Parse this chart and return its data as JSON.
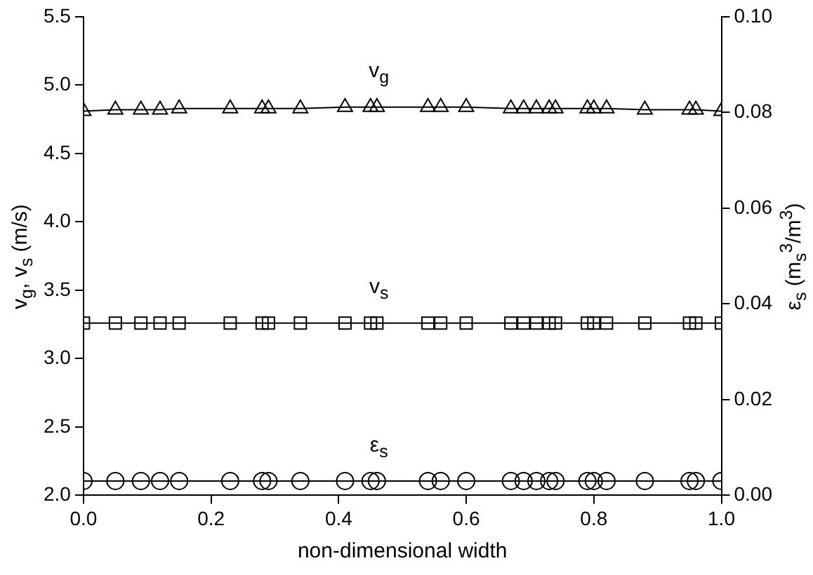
{
  "chart_data": {
    "type": "line",
    "xlabel": "non-dimensional width",
    "ylabel": "v$_{g}$, v$_{s}$ (m/s)",
    "y2label": "ε$_{s}$ (m$_{s}$$^{3}$/m$^{3}$)",
    "xlim": [
      0,
      1
    ],
    "xticks": [
      {
        "value": 0,
        "label": "0.0"
      },
      {
        "value": 0.2,
        "label": "0.2"
      },
      {
        "value": 0.4,
        "label": "0.4"
      },
      {
        "value": 0.6,
        "label": "0.6"
      },
      {
        "value": 0.8,
        "label": "0.8"
      },
      {
        "value": 1,
        "label": "1.0"
      }
    ],
    "ylim": [
      2,
      5.5
    ],
    "yticks": [
      {
        "value": 2,
        "label": "2.0"
      },
      {
        "value": 2.5,
        "label": "2.5"
      },
      {
        "value": 3,
        "label": "3.0"
      },
      {
        "value": 3.5,
        "label": "3.5"
      },
      {
        "value": 4,
        "label": "4.0"
      },
      {
        "value": 4.5,
        "label": "4.5"
      },
      {
        "value": 5,
        "label": "5.0"
      },
      {
        "value": 5.5,
        "label": "5.5"
      }
    ],
    "y2lim": [
      0,
      0.1
    ],
    "y2ticks": [
      {
        "value": 0,
        "label": "0.00"
      },
      {
        "value": 0.02,
        "label": "0.02"
      },
      {
        "value": 0.04,
        "label": "0.04"
      },
      {
        "value": 0.06,
        "label": "0.06"
      },
      {
        "value": 0.08,
        "label": "0.08"
      },
      {
        "value": 0.1,
        "label": "0.10"
      }
    ],
    "x": [
      0,
      0.05,
      0.09,
      0.12,
      0.15,
      0.23,
      0.28,
      0.29,
      0.34,
      0.41,
      0.45,
      0.46,
      0.54,
      0.56,
      0.6,
      0.67,
      0.69,
      0.71,
      0.73,
      0.74,
      0.79,
      0.8,
      0.82,
      0.88,
      0.95,
      0.96,
      1
    ],
    "series": [
      {
        "type": "line",
        "name": "v$_{g}$",
        "marker": "triangle",
        "color": "#000000",
        "values": [
          4.81,
          4.82,
          4.82,
          4.82,
          4.83,
          4.83,
          4.83,
          4.83,
          4.83,
          4.84,
          4.84,
          4.84,
          4.84,
          4.84,
          4.84,
          4.83,
          4.83,
          4.83,
          4.83,
          4.83,
          4.83,
          4.83,
          4.83,
          4.82,
          4.82,
          4.82,
          4.81
        ]
      },
      {
        "type": "line",
        "name": "v$_{s}$",
        "marker": "square",
        "color": "#000000",
        "values": [
          3.26,
          3.26,
          3.26,
          3.26,
          3.26,
          3.26,
          3.26,
          3.26,
          3.26,
          3.26,
          3.26,
          3.26,
          3.26,
          3.26,
          3.26,
          3.26,
          3.26,
          3.26,
          3.26,
          3.26,
          3.26,
          3.26,
          3.26,
          3.26,
          3.26,
          3.26,
          3.26
        ]
      },
      {
        "type": "line",
        "name": "ε$_{s}$",
        "marker": "circle",
        "axis": "y2",
        "color": "#000000",
        "values": [
          0.003,
          0.003,
          0.003,
          0.003,
          0.003,
          0.003,
          0.003,
          0.003,
          0.003,
          0.003,
          0.003,
          0.003,
          0.003,
          0.003,
          0.003,
          0.003,
          0.003,
          0.003,
          0.003,
          0.003,
          0.003,
          0.003,
          0.003,
          0.003,
          0.003,
          0.003,
          0.003
        ]
      }
    ],
    "grid": false,
    "legend": false
  }
}
